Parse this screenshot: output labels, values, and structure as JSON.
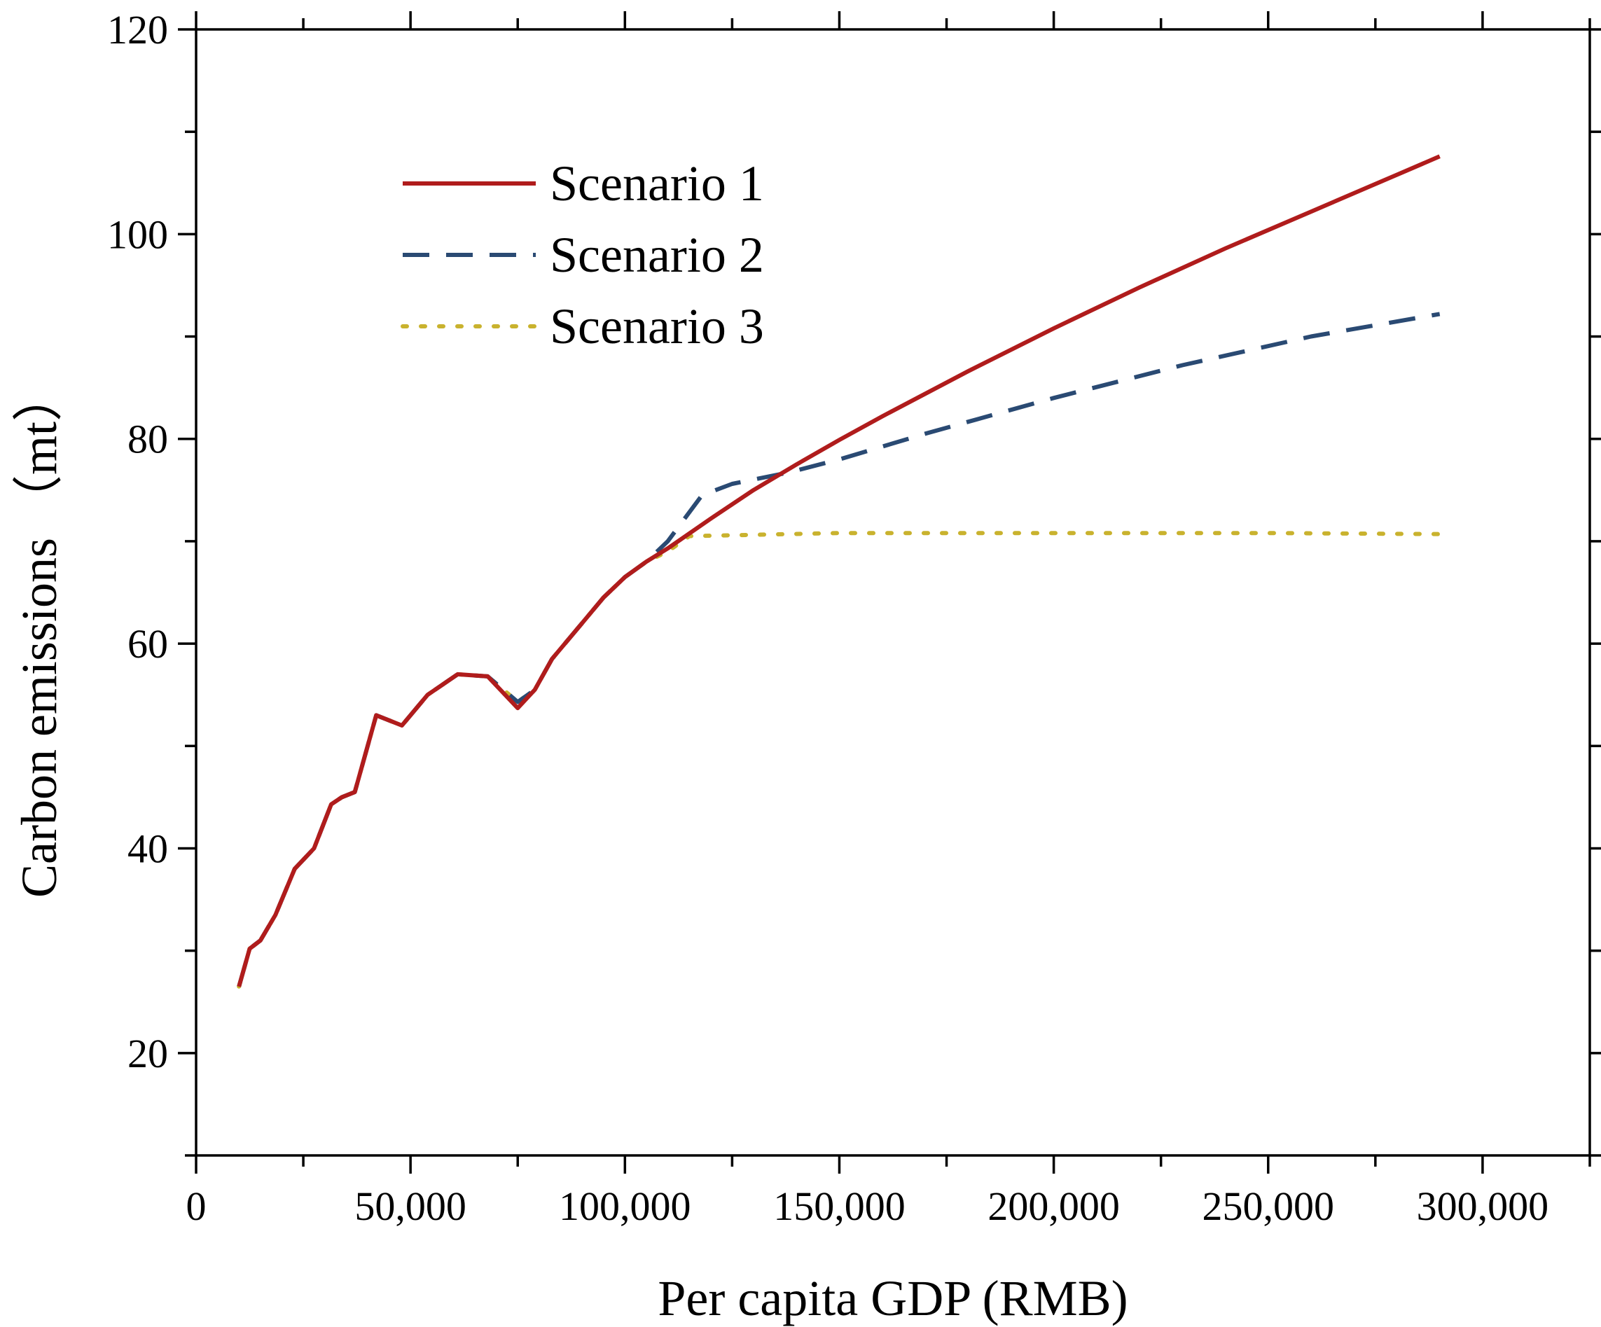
{
  "chart_data": {
    "type": "line",
    "xlabel": "Per capita GDP (RMB)",
    "ylabel": "Carbon emissions （mt）",
    "xlim": [
      0,
      325000
    ],
    "ylim": [
      10,
      120
    ],
    "x_ticks": [
      {
        "value": 0,
        "label": "0"
      },
      {
        "value": 50000,
        "label": "50,000"
      },
      {
        "value": 100000,
        "label": "100,000"
      },
      {
        "value": 150000,
        "label": "150,000"
      },
      {
        "value": 200000,
        "label": "200,000"
      },
      {
        "value": 250000,
        "label": "250,000"
      },
      {
        "value": 300000,
        "label": "300,000"
      }
    ],
    "y_ticks": [
      {
        "value": 20,
        "label": "20"
      },
      {
        "value": 40,
        "label": "40"
      },
      {
        "value": 60,
        "label": "60"
      },
      {
        "value": 80,
        "label": "80"
      },
      {
        "value": 100,
        "label": "100"
      },
      {
        "value": 120,
        "label": "120"
      }
    ],
    "legend_position": "upper-left",
    "series": [
      {
        "name": "Scenario 1",
        "color": "#b01c1c",
        "dash": "solid",
        "points": [
          [
            10000,
            26.5
          ],
          [
            12500,
            30.2
          ],
          [
            15000,
            31
          ],
          [
            18500,
            33.5
          ],
          [
            23000,
            38
          ],
          [
            27500,
            40
          ],
          [
            31500,
            44.3
          ],
          [
            34000,
            45
          ],
          [
            37000,
            45.5
          ],
          [
            42000,
            53
          ],
          [
            48000,
            52
          ],
          [
            54000,
            55
          ],
          [
            61000,
            57
          ],
          [
            68000,
            56.8
          ],
          [
            75000,
            53.7
          ],
          [
            79000,
            55.5
          ],
          [
            83000,
            58.5
          ],
          [
            90000,
            62
          ],
          [
            95000,
            64.5
          ],
          [
            100000,
            66.5
          ],
          [
            105000,
            68
          ],
          [
            110000,
            69.3
          ],
          [
            120000,
            72.2
          ],
          [
            130000,
            75
          ],
          [
            140000,
            77.5
          ],
          [
            150000,
            79.9
          ],
          [
            160000,
            82.2
          ],
          [
            180000,
            86.6
          ],
          [
            200000,
            90.8
          ],
          [
            220000,
            94.8
          ],
          [
            240000,
            98.6
          ],
          [
            260000,
            102.2
          ],
          [
            280000,
            105.8
          ],
          [
            290000,
            107.6
          ]
        ]
      },
      {
        "name": "Scenario 2",
        "color": "#2a4a73",
        "dash": "dashed",
        "points": [
          [
            10000,
            26.5
          ],
          [
            12500,
            30.2
          ],
          [
            15000,
            31
          ],
          [
            18500,
            33.5
          ],
          [
            23000,
            38
          ],
          [
            27500,
            40
          ],
          [
            31500,
            44.3
          ],
          [
            34000,
            45
          ],
          [
            37000,
            45.5
          ],
          [
            42000,
            53
          ],
          [
            48000,
            52
          ],
          [
            54000,
            55
          ],
          [
            61000,
            57
          ],
          [
            68000,
            56.8
          ],
          [
            75000,
            54.3
          ],
          [
            79000,
            55.5
          ],
          [
            83000,
            58.5
          ],
          [
            90000,
            62
          ],
          [
            95000,
            64.5
          ],
          [
            100000,
            66.5
          ],
          [
            105000,
            68
          ],
          [
            110000,
            70
          ],
          [
            118000,
            74.5
          ],
          [
            125000,
            75.6
          ],
          [
            138000,
            76.7
          ],
          [
            150000,
            78
          ],
          [
            170000,
            80.5
          ],
          [
            200000,
            84
          ],
          [
            230000,
            87.2
          ],
          [
            260000,
            90
          ],
          [
            290000,
            92.2
          ]
        ]
      },
      {
        "name": "Scenario 3",
        "color": "#c9b22e",
        "dash": "dotted",
        "points": [
          [
            10000,
            26.5
          ],
          [
            12500,
            30.2
          ],
          [
            15000,
            31
          ],
          [
            18500,
            33.5
          ],
          [
            23000,
            38
          ],
          [
            27500,
            40
          ],
          [
            31500,
            44.3
          ],
          [
            34000,
            45
          ],
          [
            37000,
            45.5
          ],
          [
            42000,
            53
          ],
          [
            48000,
            52
          ],
          [
            54000,
            55
          ],
          [
            61000,
            57
          ],
          [
            68000,
            56.8
          ],
          [
            75000,
            54.3
          ],
          [
            79000,
            55.5
          ],
          [
            83000,
            58.5
          ],
          [
            90000,
            62
          ],
          [
            95000,
            64.5
          ],
          [
            100000,
            66.5
          ],
          [
            105000,
            68
          ],
          [
            110000,
            69
          ],
          [
            115000,
            70.5
          ],
          [
            150000,
            70.8
          ],
          [
            200000,
            70.8
          ],
          [
            250000,
            70.8
          ],
          [
            290000,
            70.7
          ]
        ]
      }
    ]
  }
}
